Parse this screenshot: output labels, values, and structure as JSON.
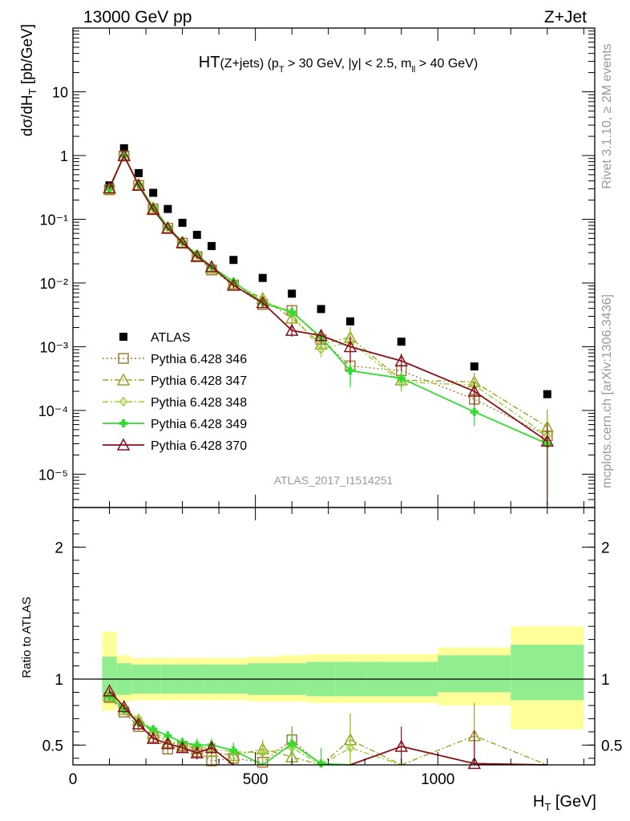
{
  "header": {
    "left": "13000 GeV pp",
    "right": "Z+Jet"
  },
  "side_text": {
    "rivet": "Rivet 3.1.10, ≥ 2M events",
    "mcplots": "mcplots.cern.ch [arXiv:1306.3436]"
  },
  "analysis_label": "ATLAS_2017_I1514251",
  "chart_data": [
    {
      "type": "scatter",
      "panel": "main",
      "title_parts": {
        "main": "HT",
        "sub1": "(Z+jets) (p",
        "sub_t": "T",
        "sub2": " > 30 GeV, |y| < 2.5, m",
        "sub_ll": "ll",
        "sub3": " > 40 GeV)"
      },
      "ylabel": "dσ/dH_T [pb/GeV]",
      "ylabel_parts": {
        "a": "dσ/dH",
        "sub": "T",
        "b": " [pb/GeV]"
      },
      "y_scale": "log",
      "ylim": [
        3e-06,
        100
      ],
      "xlim": [
        0,
        1430
      ],
      "y_tick_labels": [
        "10",
        "1",
        "10⁻¹",
        "10⁻²",
        "10⁻³",
        "10⁻⁴",
        "10⁻⁵"
      ],
      "y_tick_values": [
        10,
        1,
        0.1,
        0.01,
        0.001,
        0.0001,
        1e-05
      ],
      "x": [
        100,
        140,
        180,
        220,
        260,
        300,
        340,
        380,
        440,
        520,
        600,
        680,
        760,
        900,
        1100,
        1300
      ],
      "series": [
        {
          "name": "ATLAS",
          "color": "#000000",
          "marker": "filled-square",
          "values": [
            0.34,
            1.3,
            0.53,
            0.26,
            0.145,
            0.088,
            0.057,
            0.038,
            0.023,
            0.012,
            0.0068,
            0.0039,
            0.0025,
            0.0012,
            0.00049,
            0.00018
          ]
        },
        {
          "name": "Pythia 6.428 346",
          "color": "#a57c34",
          "marker": "open-square",
          "line": "dotted",
          "values": [
            0.29,
            0.98,
            0.34,
            0.145,
            0.072,
            0.042,
            0.026,
            0.016,
            0.0093,
            0.0046,
            0.0037,
            0.0013,
            0.0005,
            0.00042,
            0.00015,
            4e-05
          ]
        },
        {
          "name": "Pythia 6.428 347",
          "color": "#9aa520",
          "marker": "open-triangle",
          "line": "dashdot",
          "values": [
            0.3,
            0.99,
            0.35,
            0.15,
            0.074,
            0.043,
            0.027,
            0.017,
            0.0098,
            0.0057,
            0.0028,
            0.0011,
            0.0014,
            0.0003,
            0.00028,
            5.5e-05
          ]
        },
        {
          "name": "Pythia 6.428 348",
          "color": "#9acd32",
          "marker": "open-diamond",
          "line": "dashdot",
          "values": [
            0.3,
            1.0,
            0.36,
            0.15,
            0.075,
            0.044,
            0.028,
            0.018,
            0.01,
            0.0054,
            0.0033,
            0.0009,
            0.0012,
            0.00028,
            0.00025,
            4e-05
          ]
        },
        {
          "name": "Pythia 6.428 349",
          "color": "#32dd32",
          "marker": "filled-cross",
          "line": "solid",
          "values": [
            0.3,
            1.0,
            0.35,
            0.155,
            0.076,
            0.044,
            0.028,
            0.018,
            0.0105,
            0.0049,
            0.0035,
            0.0014,
            0.00042,
            0.00032,
            9.5e-05,
            3e-05
          ]
        },
        {
          "name": "Pythia 6.428 370",
          "color": "#8b0f1a",
          "marker": "open-triangle",
          "line": "solid",
          "values": [
            0.31,
            1.0,
            0.34,
            0.142,
            0.072,
            0.043,
            0.026,
            0.018,
            0.0092,
            0.0049,
            0.0018,
            0.0015,
            0.001,
            0.0006,
            0.0002,
            3.3e-05
          ]
        }
      ]
    },
    {
      "type": "line",
      "panel": "ratio",
      "ylabel": "Ratio to ATLAS",
      "xlabel": "H_T [GeV]",
      "xlabel_parts": {
        "a": "H",
        "sub": "T",
        "b": " [GeV]"
      },
      "ylim": [
        0.35,
        2.3
      ],
      "xlim": [
        0,
        1430
      ],
      "x_tick_labels": [
        "0",
        "500",
        "1000"
      ],
      "x_tick_values": [
        0,
        500,
        1000
      ],
      "y_tick_labels": [
        "0.5",
        "1",
        "2"
      ],
      "y_tick_values": [
        0.5,
        1,
        2
      ],
      "bands": {
        "bin_edges": [
          80,
          120,
          160,
          200,
          240,
          280,
          320,
          360,
          400,
          480,
          560,
          640,
          720,
          800,
          1000,
          1200,
          1400
        ],
        "inner_color": "#90ee90",
        "outer_color": "#ffff99",
        "inner": [
          [
            0.84,
            1.17
          ],
          [
            0.88,
            1.12
          ],
          [
            0.89,
            1.11
          ],
          [
            0.89,
            1.11
          ],
          [
            0.89,
            1.11
          ],
          [
            0.89,
            1.11
          ],
          [
            0.89,
            1.11
          ],
          [
            0.89,
            1.11
          ],
          [
            0.89,
            1.11
          ],
          [
            0.88,
            1.12
          ],
          [
            0.88,
            1.12
          ],
          [
            0.87,
            1.13
          ],
          [
            0.87,
            1.13
          ],
          [
            0.87,
            1.13
          ],
          [
            0.9,
            1.18
          ],
          [
            0.84,
            1.26
          ],
          [
            0.84,
            1.26
          ]
        ],
        "outer": [
          [
            0.76,
            1.36
          ],
          [
            0.83,
            1.18
          ],
          [
            0.84,
            1.16
          ],
          [
            0.84,
            1.16
          ],
          [
            0.84,
            1.16
          ],
          [
            0.84,
            1.16
          ],
          [
            0.84,
            1.16
          ],
          [
            0.84,
            1.16
          ],
          [
            0.84,
            1.16
          ],
          [
            0.83,
            1.17
          ],
          [
            0.83,
            1.18
          ],
          [
            0.82,
            1.19
          ],
          [
            0.82,
            1.19
          ],
          [
            0.82,
            1.19
          ],
          [
            0.8,
            1.24
          ],
          [
            0.62,
            1.4
          ],
          [
            0.62,
            1.5
          ]
        ]
      },
      "x": [
        100,
        140,
        180,
        220,
        260,
        300,
        340,
        380,
        440,
        520,
        600,
        680,
        760,
        900,
        1100,
        1300
      ],
      "series": [
        {
          "name": "Pythia 6.428 346",
          "values": [
            0.86,
            0.75,
            0.64,
            0.56,
            0.47,
            0.49,
            0.45,
            0.38,
            0.4,
            0.37,
            0.54,
            null,
            null,
            null,
            null,
            null
          ]
        },
        {
          "name": "Pythia 6.428 347",
          "values": [
            0.87,
            0.77,
            0.69,
            0.59,
            0.52,
            0.5,
            0.47,
            0.45,
            0.42,
            0.47,
            0.41,
            null,
            0.54,
            null,
            0.57,
            null
          ]
        },
        {
          "name": "Pythia 6.428 348",
          "values": [
            0.88,
            0.78,
            0.7,
            0.61,
            0.53,
            0.51,
            0.49,
            0.47,
            0.45,
            0.44,
            0.48,
            null,
            0.48,
            null,
            null,
            null
          ]
        },
        {
          "name": "Pythia 6.428 349",
          "values": [
            0.87,
            0.77,
            0.67,
            0.62,
            0.57,
            0.52,
            0.5,
            0.5,
            0.46,
            null,
            0.51,
            0.36,
            null,
            null,
            null,
            null
          ]
        },
        {
          "name": "Pythia 6.428 370",
          "values": [
            0.91,
            0.79,
            0.66,
            0.55,
            0.51,
            0.48,
            0.44,
            0.48,
            null,
            null,
            null,
            null,
            null,
            0.49,
            0.36,
            null
          ]
        }
      ]
    }
  ]
}
